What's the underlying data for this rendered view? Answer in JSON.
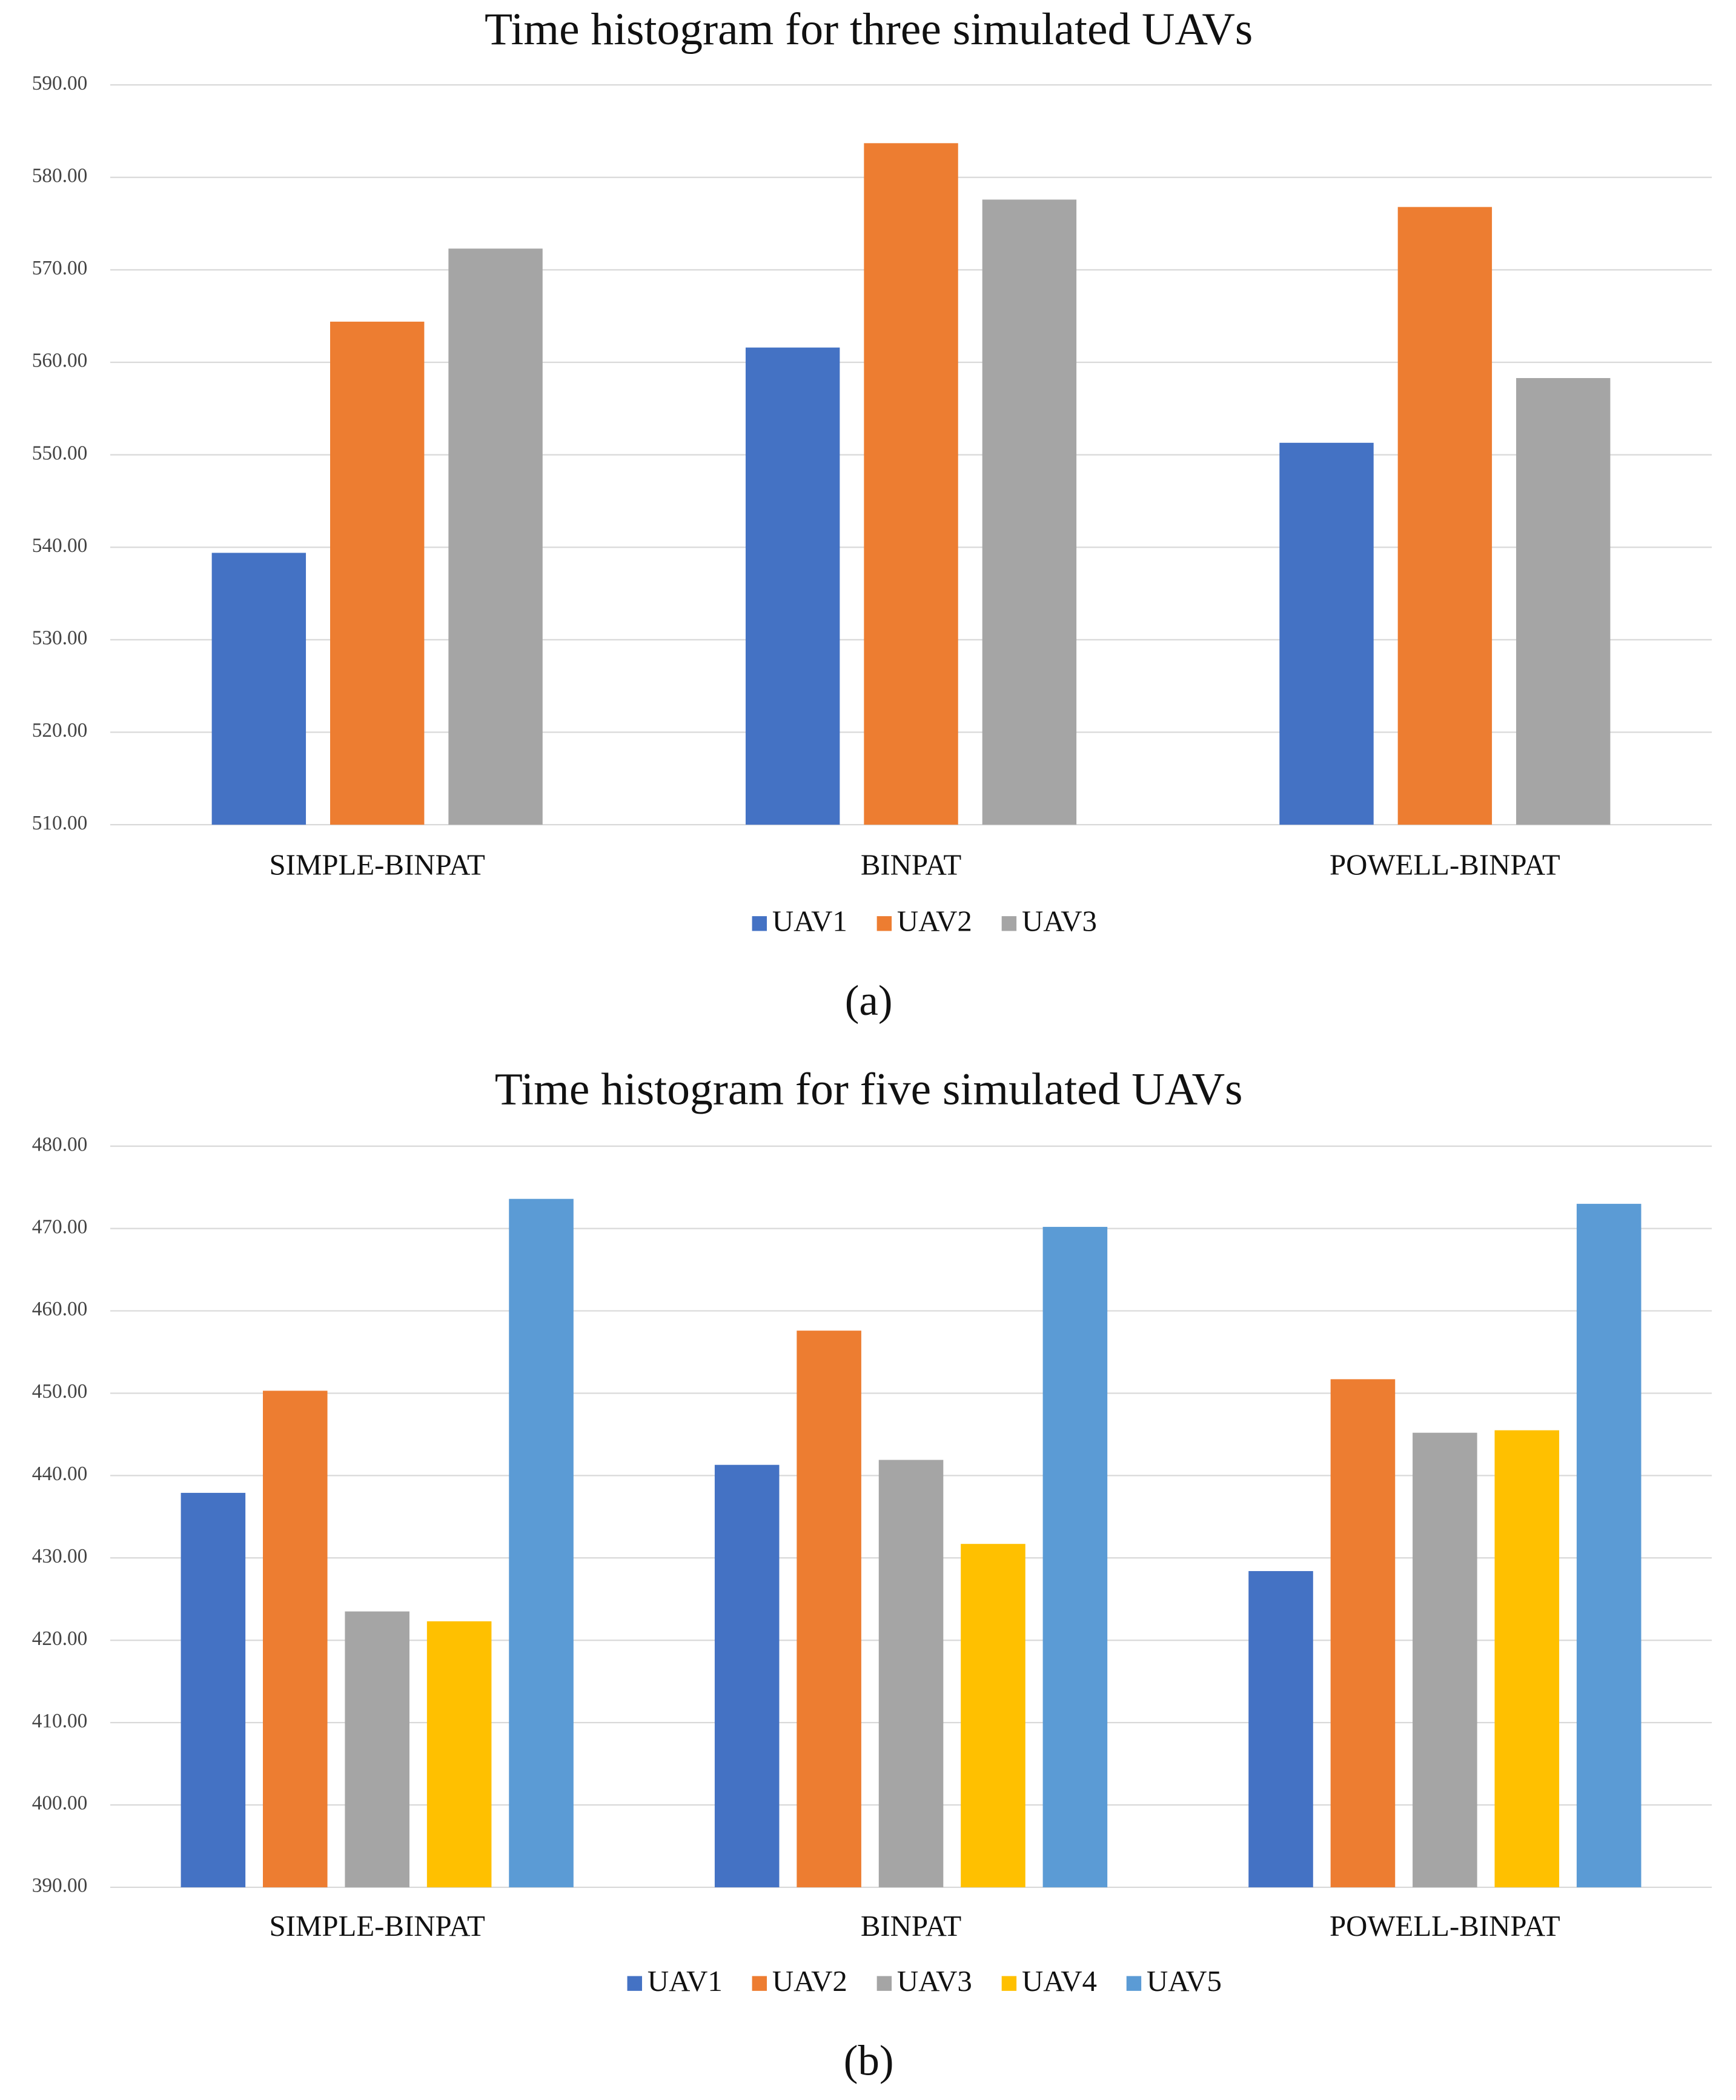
{
  "chart_data": [
    {
      "type": "bar",
      "title": "Time histogram for three simulated UAVs",
      "caption": "(a)",
      "categories": [
        "SIMPLE-BINPAT",
        "BINPAT",
        "POWELL-BINPAT"
      ],
      "series": [
        {
          "name": "UAV1",
          "color": "#4472c4",
          "values": [
            539.4,
            561.6,
            551.3
          ]
        },
        {
          "name": "UAV2",
          "color": "#ed7d31",
          "values": [
            564.4,
            583.7,
            576.8
          ]
        },
        {
          "name": "UAV3",
          "color": "#a5a5a5",
          "values": [
            572.3,
            577.6,
            558.3
          ]
        }
      ],
      "ylim": [
        510,
        590
      ],
      "yticks": [
        {
          "value": 510,
          "label": "510.00"
        },
        {
          "value": 520,
          "label": "520.00"
        },
        {
          "value": 530,
          "label": "530.00"
        },
        {
          "value": 540,
          "label": "540.00"
        },
        {
          "value": 550,
          "label": "550.00"
        },
        {
          "value": 560,
          "label": "560.00"
        },
        {
          "value": 570,
          "label": "570.00"
        },
        {
          "value": 580,
          "label": "580.00"
        },
        {
          "value": 590,
          "label": "590.00"
        }
      ],
      "grid": true,
      "legend": "bottom"
    },
    {
      "type": "bar",
      "title": "Time histogram for five simulated UAVs",
      "caption": "(b)",
      "categories": [
        "SIMPLE-BINPAT",
        "BINPAT",
        "POWELL-BINPAT"
      ],
      "series": [
        {
          "name": "UAV1",
          "color": "#4472c4",
          "values": [
            437.9,
            441.3,
            428.4
          ]
        },
        {
          "name": "UAV2",
          "color": "#ed7d31",
          "values": [
            450.3,
            457.6,
            451.7
          ]
        },
        {
          "name": "UAV3",
          "color": "#a5a5a5",
          "values": [
            423.5,
            441.9,
            445.2
          ]
        },
        {
          "name": "UAV4",
          "color": "#ffc000",
          "values": [
            422.3,
            431.7,
            445.5
          ]
        },
        {
          "name": "UAV5",
          "color": "#5b9bd5",
          "values": [
            473.6,
            470.2,
            473.0
          ]
        }
      ],
      "ylim": [
        390,
        480
      ],
      "yticks": [
        {
          "value": 390,
          "label": "390.00"
        },
        {
          "value": 400,
          "label": "400.00"
        },
        {
          "value": 410,
          "label": "410.00"
        },
        {
          "value": 420,
          "label": "420.00"
        },
        {
          "value": 430,
          "label": "430.00"
        },
        {
          "value": 440,
          "label": "440.00"
        },
        {
          "value": 450,
          "label": "450.00"
        },
        {
          "value": 460,
          "label": "460.00"
        },
        {
          "value": 470,
          "label": "470.00"
        },
        {
          "value": 480,
          "label": "480.00"
        }
      ],
      "grid": true,
      "legend": "bottom"
    }
  ]
}
